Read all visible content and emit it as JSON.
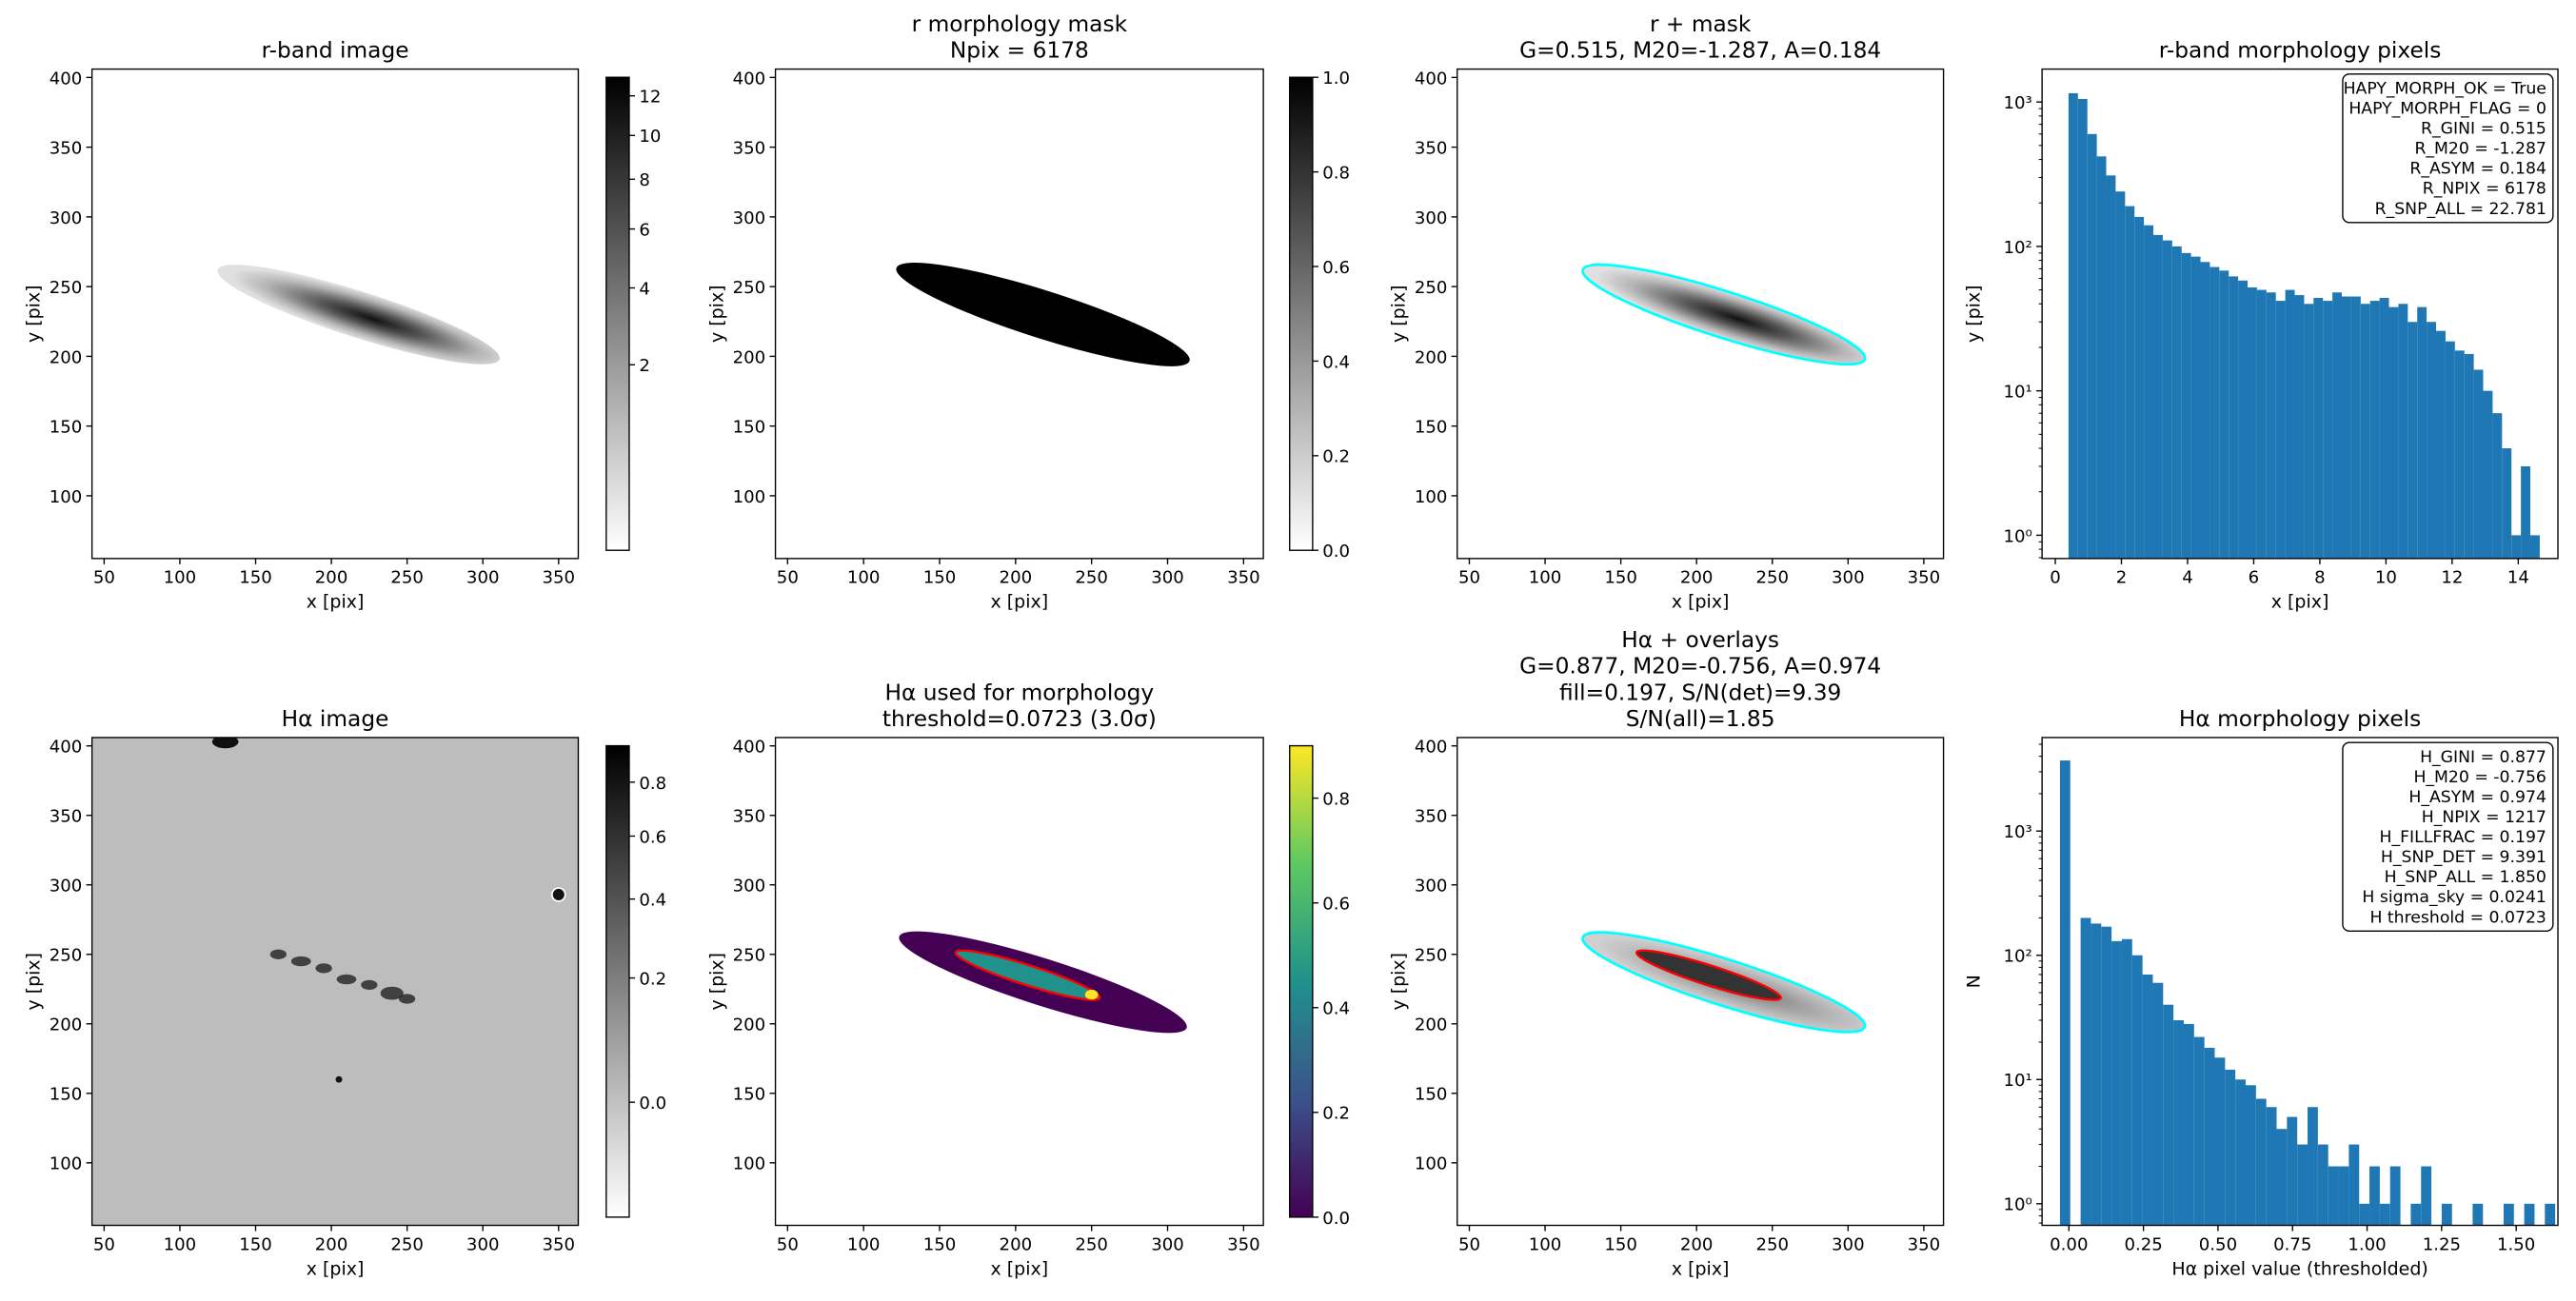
{
  "chart_data": [
    {
      "type": "image",
      "title": [
        "r-band image"
      ],
      "xlabel": "x [pix]",
      "ylabel": "y [pix]",
      "xlim": [
        42,
        363
      ],
      "ylim": [
        55,
        406
      ],
      "xticks": [
        50,
        100,
        150,
        200,
        250,
        300,
        350
      ],
      "yticks": [
        100,
        150,
        200,
        250,
        300,
        350,
        400
      ],
      "colorbar": {
        "cmap": "gray_r",
        "scale": "sqrt",
        "clim": [
          0,
          13
        ],
        "ticks": [
          2,
          4,
          6,
          8,
          10,
          12
        ]
      }
    },
    {
      "type": "image",
      "title": [
        "r morphology mask",
        "Npix = 6178"
      ],
      "xlabel": "x [pix]",
      "ylabel": "y [pix]",
      "xlim": [
        42,
        363
      ],
      "ylim": [
        55,
        406
      ],
      "xticks": [
        50,
        100,
        150,
        200,
        250,
        300,
        350
      ],
      "yticks": [
        100,
        150,
        200,
        250,
        300,
        350,
        400
      ],
      "colorbar": {
        "cmap": "gray_r",
        "scale": "linear",
        "clim": [
          0,
          1
        ],
        "ticks": [
          {
            "value": 0,
            "label": "0.0"
          },
          0.2,
          0.4,
          0.6,
          0.8,
          {
            "value": 1,
            "label": "1.0"
          }
        ]
      }
    },
    {
      "type": "image",
      "title": [
        "r + mask",
        "G=0.515, M20=-1.287, A=0.184"
      ],
      "xlabel": "x [pix]",
      "ylabel": "y [pix]",
      "xlim": [
        42,
        363
      ],
      "ylim": [
        55,
        406
      ],
      "xticks": [
        50,
        100,
        150,
        200,
        250,
        300,
        350
      ],
      "yticks": [
        100,
        150,
        200,
        250,
        300,
        350,
        400
      ]
    },
    {
      "type": "histogram",
      "title": [
        "r-band morphology pixels"
      ],
      "xlabel": "x [pix]",
      "ylabel": "y [pix]",
      "color": "#1f77b4",
      "xlim": [
        -0.4,
        15.2
      ],
      "ylim": [
        0.69,
        1690
      ],
      "yscale": "log",
      "xticks": [
        0,
        2,
        4,
        6,
        8,
        10,
        12,
        14
      ],
      "yticks": [
        {
          "value": 1,
          "label": "10⁰"
        },
        {
          "value": 10,
          "label": "10¹"
        },
        {
          "value": 100,
          "label": "10²"
        },
        {
          "value": 1000,
          "label": "10³"
        }
      ],
      "bins": [
        0.4,
        0.685,
        0.97,
        1.255,
        1.54,
        1.825,
        2.11,
        2.395,
        2.68,
        2.965,
        3.25,
        3.535,
        3.82,
        4.105,
        4.39,
        4.675,
        4.96,
        5.245,
        5.53,
        5.815,
        6.1,
        6.385,
        6.67,
        6.955,
        7.24,
        7.525,
        7.81,
        8.095,
        8.38,
        8.665,
        8.95,
        9.235,
        9.52,
        9.805,
        10.09,
        10.375,
        10.66,
        10.945,
        11.23,
        11.515,
        11.8,
        12.085,
        12.37,
        12.655,
        12.94,
        13.225,
        13.51,
        13.795,
        14.08,
        14.365,
        14.65
      ],
      "counts": [
        1150,
        1050,
        600,
        420,
        310,
        240,
        190,
        160,
        140,
        120,
        110,
        100,
        90,
        85,
        78,
        72,
        68,
        62,
        58,
        52,
        50,
        48,
        42,
        50,
        46,
        40,
        44,
        42,
        48,
        45,
        45,
        40,
        42,
        44,
        38,
        40,
        30,
        38,
        30,
        26,
        22,
        19,
        18,
        14,
        10,
        7,
        4,
        1,
        3,
        1
      ],
      "annotation": [
        "HAPY_MORPH_OK = True",
        "HAPY_MORPH_FLAG = 0",
        "R_GINI = 0.515",
        "R_M20 = -1.287",
        "R_ASYM = 0.184",
        "R_NPIX = 6178",
        "R_SNP_ALL = 22.781"
      ]
    },
    {
      "type": "image",
      "title": [
        "Hα image"
      ],
      "xlabel": "x [pix]",
      "ylabel": "y [pix]",
      "xlim": [
        42,
        363
      ],
      "ylim": [
        55,
        406
      ],
      "xticks": [
        50,
        100,
        150,
        200,
        250,
        300,
        350
      ],
      "yticks": [
        100,
        150,
        200,
        250,
        300,
        350,
        400
      ],
      "colorbar": {
        "cmap": "gray_r",
        "scale": "sqrt",
        "clim": [
          -0.06,
          0.95
        ],
        "ticks": [
          {
            "value": 0,
            "label": "0.0"
          },
          0.2,
          0.4,
          0.6,
          0.8
        ]
      }
    },
    {
      "type": "image",
      "title": [
        "Hα used for morphology",
        "threshold=0.0723 (3.0σ)"
      ],
      "xlabel": "x [pix]",
      "ylabel": "y [pix]",
      "xlim": [
        42,
        363
      ],
      "ylim": [
        55,
        406
      ],
      "xticks": [
        50,
        100,
        150,
        200,
        250,
        300,
        350
      ],
      "yticks": [
        100,
        150,
        200,
        250,
        300,
        350,
        400
      ],
      "colorbar": {
        "cmap": "viridis",
        "scale": "linear",
        "clim": [
          0,
          0.9
        ],
        "ticks": [
          {
            "value": 0,
            "label": "0.0"
          },
          0.2,
          0.4,
          0.6,
          0.8
        ]
      }
    },
    {
      "type": "image",
      "title": [
        "Hα + overlays",
        "G=0.877, M20=-0.756, A=0.974",
        "fill=0.197, S/N(det)=9.39",
        "S/N(all)=1.85"
      ],
      "xlabel": "x [pix]",
      "ylabel": "y [pix]",
      "xlim": [
        42,
        363
      ],
      "ylim": [
        55,
        406
      ],
      "xticks": [
        50,
        100,
        150,
        200,
        250,
        300,
        350
      ],
      "yticks": [
        100,
        150,
        200,
        250,
        300,
        350,
        400
      ]
    },
    {
      "type": "histogram",
      "title": [
        "Hα morphology pixels"
      ],
      "xlabel": "Hα pixel value (thresholded)",
      "ylabel": "N",
      "color": "#1f77b4",
      "xlim": [
        -0.09,
        1.64
      ],
      "ylim": [
        0.67,
        5660
      ],
      "yscale": "log",
      "xticks": [
        {
          "value": 0,
          "label": "0.00"
        },
        0.25,
        {
          "value": 0.5,
          "label": "0.50"
        },
        0.75,
        {
          "value": 1,
          "label": "1.00"
        },
        1.25,
        {
          "value": 1.5,
          "label": "1.50"
        }
      ],
      "yticks": [
        {
          "value": 1,
          "label": "10⁰"
        },
        {
          "value": 10,
          "label": "10¹"
        },
        {
          "value": 100,
          "label": "10²"
        },
        {
          "value": 1000,
          "label": "10³"
        }
      ],
      "bins": [
        -0.03,
        0.0046,
        0.0392,
        0.0738,
        0.1084,
        0.143,
        0.1776,
        0.2122,
        0.2468,
        0.2814,
        0.316,
        0.3506,
        0.3852,
        0.4198,
        0.4544,
        0.489,
        0.5236,
        0.5582,
        0.5928,
        0.6274,
        0.662,
        0.6966,
        0.7312,
        0.7658,
        0.8004,
        0.835,
        0.8696,
        0.9042,
        0.9388,
        0.9734,
        1.008,
        1.0426,
        1.0772,
        1.1118,
        1.1464,
        1.181,
        1.2156,
        1.2502,
        1.2848,
        1.3194,
        1.354,
        1.3886,
        1.4232,
        1.4578,
        1.4924,
        1.527,
        1.5616,
        1.5962,
        1.6308
      ],
      "counts": [
        3700,
        0,
        200,
        180,
        170,
        130,
        135,
        100,
        70,
        60,
        40,
        30,
        28,
        22,
        18,
        15,
        12,
        10,
        9,
        7,
        6,
        4,
        5,
        3,
        6,
        3,
        2,
        2,
        3,
        1,
        2,
        1,
        2,
        0,
        1,
        2,
        0,
        1,
        0,
        0,
        1,
        0,
        0,
        1,
        0,
        1,
        0,
        1
      ],
      "annotation": [
        "H_GINI = 0.877",
        "H_M20 = -0.756",
        "H_ASYM = 0.974",
        "H_NPIX = 1217",
        "H_FILLFRAC = 0.197",
        "H_SNP_DET = 9.391",
        "H_SNP_ALL = 1.850",
        "H sigma_sky = 0.0241",
        "H threshold = 0.0723"
      ]
    }
  ]
}
